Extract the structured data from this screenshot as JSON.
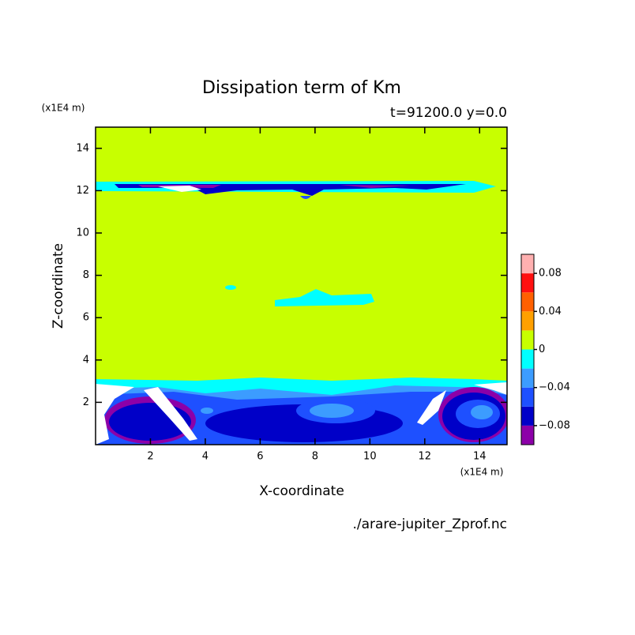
{
  "chart_data": {
    "type": "contour",
    "title": "Dissipation term of Km",
    "subtitle": "t=91200.0 y=0.0",
    "xlabel": "X-coordinate",
    "ylabel": "Z-coordinate",
    "xunit": "(x1E4 m)",
    "yunit": "(x1E4 m)",
    "source": "./arare-jupiter_Zprof.nc",
    "xlim": [
      0,
      15
    ],
    "ylim": [
      0,
      15
    ],
    "xticks": [
      2,
      4,
      6,
      8,
      10,
      12,
      14
    ],
    "yticks": [
      2,
      4,
      6,
      8,
      10,
      12,
      14
    ],
    "levels": [
      -0.1,
      -0.08,
      -0.06,
      -0.04,
      -0.02,
      0,
      0.02,
      0.04,
      0.06,
      0.08,
      0.1
    ],
    "colors": [
      "#8c00a8",
      "#0000c8",
      "#1e50ff",
      "#3c9cff",
      "#00ffff",
      "#c8ff00",
      "#ffa000",
      "#ff6000",
      "#ff1010",
      "#ffb0b0"
    ],
    "cticks": [
      {
        "value": -0.08,
        "label": "−0.08"
      },
      {
        "value": -0.04,
        "label": "−0.04"
      },
      0,
      0.04,
      0.08
    ]
  }
}
